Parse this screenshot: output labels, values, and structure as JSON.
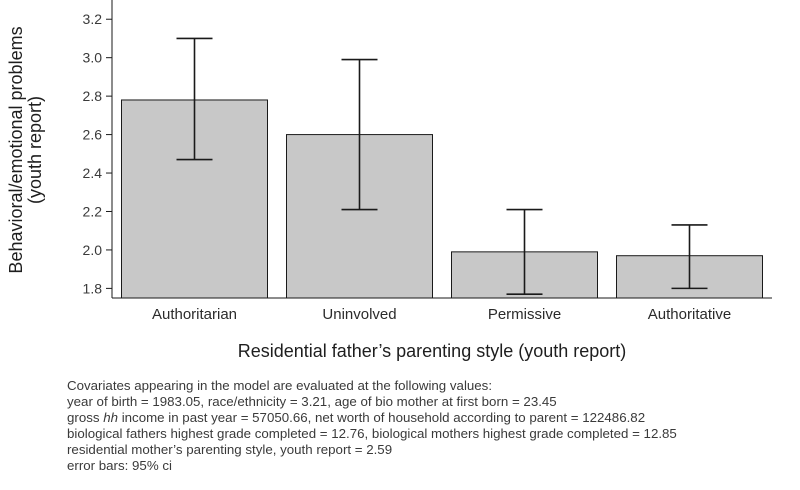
{
  "chart_data": {
    "type": "bar",
    "categories": [
      "Authoritarian",
      "Uninvolved",
      "Permissive",
      "Authoritative"
    ],
    "values": [
      2.78,
      2.6,
      1.99,
      1.97
    ],
    "error_low": [
      2.47,
      2.21,
      1.77,
      1.8
    ],
    "error_high": [
      3.1,
      2.99,
      2.21,
      2.13
    ],
    "ylim": [
      1.75,
      3.3
    ],
    "yticks": [
      "1.8",
      "2.0",
      "2.2",
      "2.4",
      "2.6",
      "2.8",
      "3.0",
      "3.2"
    ],
    "xlabel": "Residential father’s parenting style (youth report)",
    "ylabel_line1": "Behavioral/emotional problems",
    "ylabel_line2": "(youth report)",
    "bar_color": "#c8c8c8",
    "edge_color": "#1a1a1a"
  },
  "notes": {
    "line1": "Covariates appearing in the model are evaluated at the following values:",
    "line2": "year of birth = 1983.05, race/ethnicity = 3.21, age of bio mother at first born = 23.45",
    "line3_prefix": "gross ",
    "line3_italic": "hh",
    "line3_suffix": " income in past year = 57050.66, net worth of household according to parent = 122486.82",
    "line4": "biological fathers highest grade completed = 12.76, biological mothers highest grade completed = 12.85",
    "line5": "residential mother’s parenting style, youth report = 2.59",
    "line6": "error bars: 95% ci"
  }
}
